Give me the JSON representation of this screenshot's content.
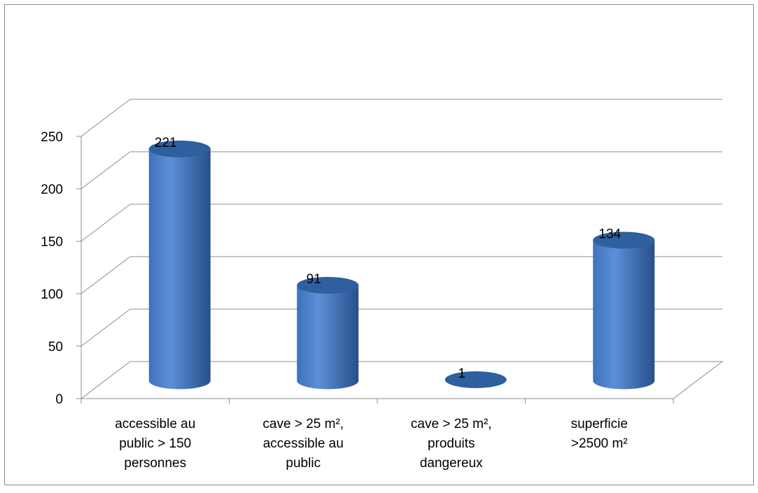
{
  "chart_data": {
    "type": "bar",
    "style": "3d-cylinder",
    "categories": [
      [
        "accessible au",
        "public > 150",
        "personnes"
      ],
      [
        "cave > 25 m²,",
        "accessible au",
        "public"
      ],
      [
        "cave > 25 m²,",
        "produits",
        "dangereux"
      ],
      [
        "superficie",
        ">2500 m²"
      ]
    ],
    "values": [
      221,
      91,
      1,
      134
    ],
    "data_labels": [
      "221",
      "91",
      "1",
      "134"
    ],
    "y_ticks": [
      "0",
      "50",
      "100",
      "150",
      "200",
      "250"
    ],
    "ylim": [
      0,
      250
    ],
    "grid": true,
    "legend": "none",
    "colors": {
      "bar_light": "#5b8fd6",
      "bar_mid": "#3f72bd",
      "bar_dark": "#284f8a",
      "bar_top": "#2e5f9e",
      "grid": "#8c8c8c",
      "frame": "#8c8c8c"
    }
  }
}
